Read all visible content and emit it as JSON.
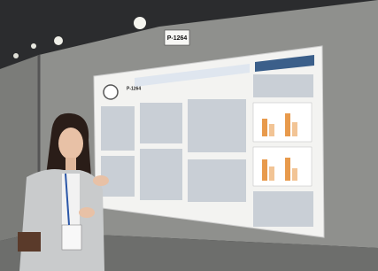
{
  "sign": {
    "label": "P-1264"
  },
  "poster": {
    "code": "P-1264"
  }
}
